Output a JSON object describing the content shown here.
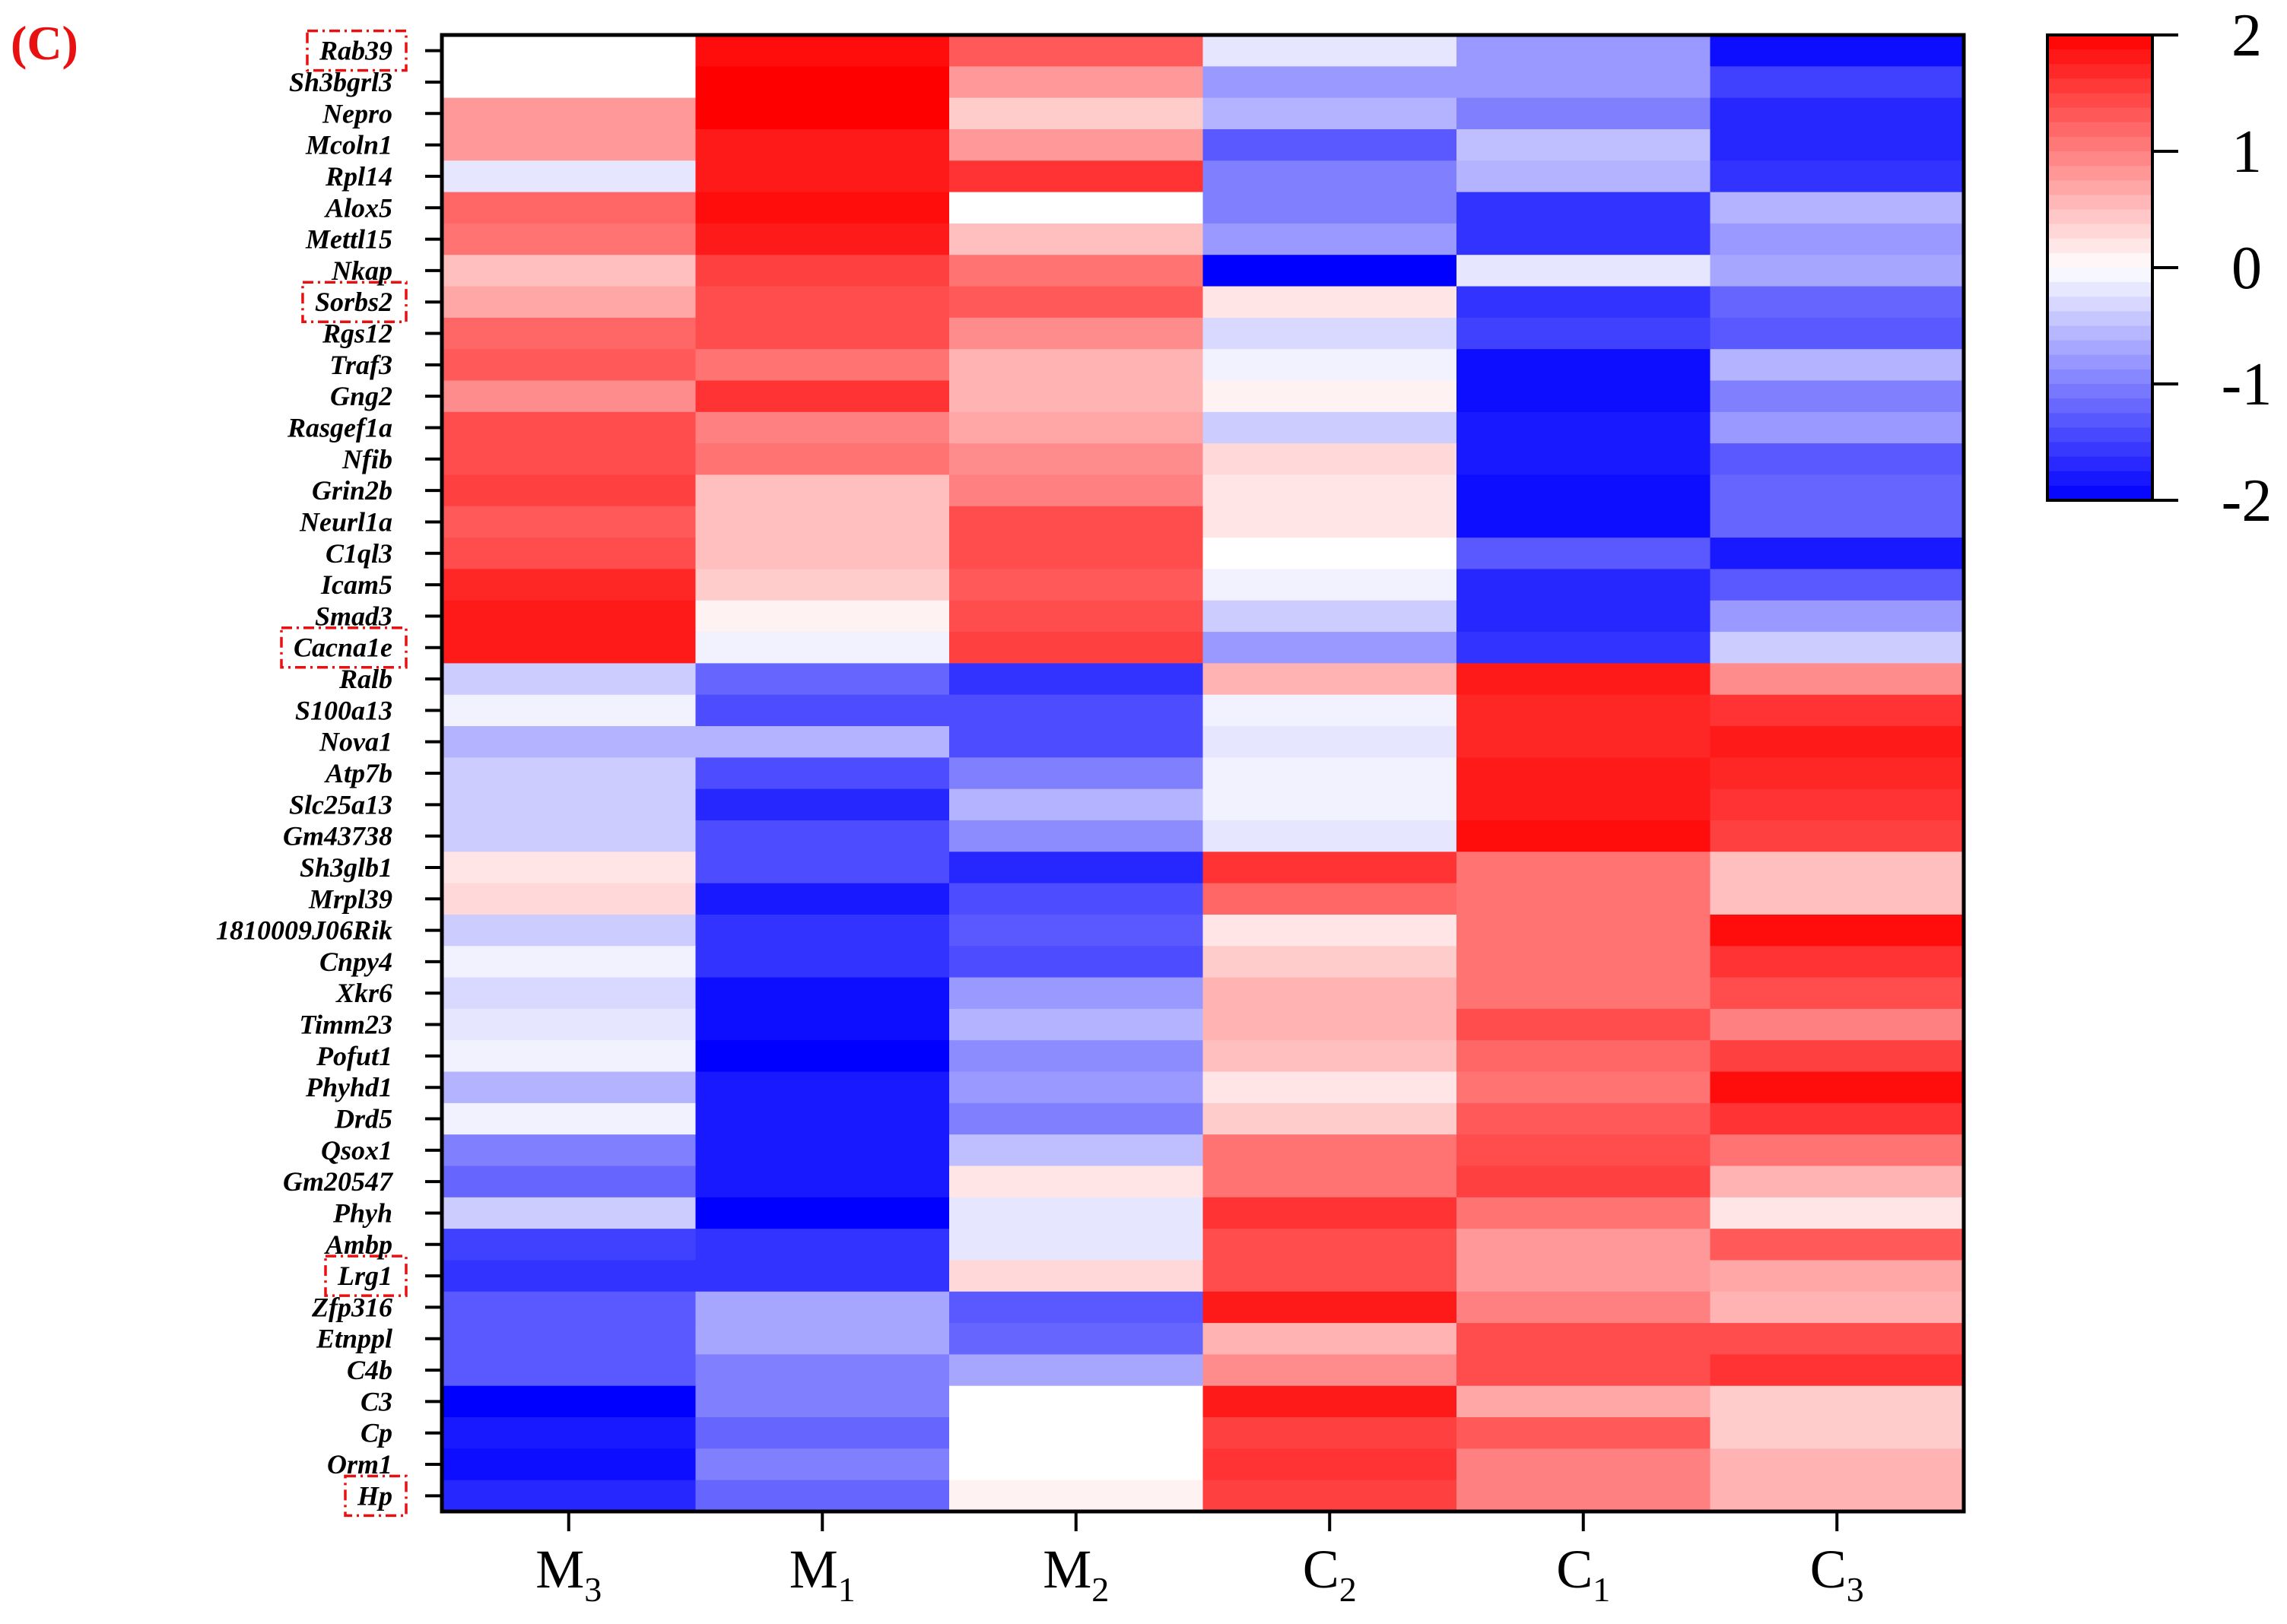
{
  "panel_label": "(C)",
  "chart_data": {
    "type": "heatmap",
    "title": "",
    "columns": [
      {
        "base": "M",
        "sub": "3"
      },
      {
        "base": "M",
        "sub": "1"
      },
      {
        "base": "M",
        "sub": "2"
      },
      {
        "base": "C",
        "sub": "2"
      },
      {
        "base": "C",
        "sub": "1"
      },
      {
        "base": "C",
        "sub": "3"
      }
    ],
    "rows": [
      "Rab39",
      "Sh3bgrl3",
      "Nepro",
      "Mcoln1",
      "Rpl14",
      "Alox5",
      "Mettl15",
      "Nkap",
      "Sorbs2",
      "Rgs12",
      "Traf3",
      "Gng2",
      "Rasgef1a",
      "Nfib",
      "Grin2b",
      "Neurl1a",
      "C1ql3",
      "Icam5",
      "Smad3",
      "Cacna1e",
      "Ralb",
      "S100a13",
      "Nova1",
      "Atp7b",
      "Slc25a13",
      "Gm43738",
      "Sh3glb1",
      "Mrpl39",
      "1810009J06Rik",
      "Cnpy4",
      "Xkr6",
      "Timm23",
      "Pofut1",
      "Phyhd1",
      "Drd5",
      "Qsox1",
      "Gm20547",
      "Phyh",
      "Ambp",
      "Lrg1",
      "Zfp316",
      "Etnppl",
      "C4b",
      "C3",
      "Cp",
      "Orm1",
      "Hp"
    ],
    "highlighted_rows": [
      "Rab39",
      "Sorbs2",
      "Cacna1e",
      "Lrg1",
      "Hp"
    ],
    "values": [
      [
        0.0,
        1.9,
        1.3,
        -0.2,
        -0.8,
        -1.9
      ],
      [
        0.0,
        2.0,
        0.8,
        -0.8,
        -0.8,
        -1.5
      ],
      [
        0.8,
        2.0,
        0.4,
        -0.6,
        -1.0,
        -1.7
      ],
      [
        0.8,
        1.8,
        0.8,
        -1.3,
        -0.5,
        -1.7
      ],
      [
        -0.2,
        1.8,
        1.6,
        -1.0,
        -0.6,
        -1.6
      ],
      [
        1.2,
        1.9,
        0.0,
        -1.0,
        -1.6,
        -0.6
      ],
      [
        1.1,
        1.8,
        0.5,
        -0.8,
        -1.6,
        -0.8
      ],
      [
        0.5,
        1.5,
        1.1,
        -2.0,
        -0.2,
        -0.7
      ],
      [
        0.7,
        1.4,
        1.3,
        0.2,
        -1.6,
        -1.2
      ],
      [
        1.2,
        1.4,
        0.9,
        -0.3,
        -1.5,
        -1.3
      ],
      [
        1.3,
        1.1,
        0.6,
        -0.1,
        -1.9,
        -0.6
      ],
      [
        0.9,
        1.6,
        0.6,
        0.1,
        -1.9,
        -1.0
      ],
      [
        1.4,
        1.0,
        0.7,
        -0.4,
        -1.8,
        -0.8
      ],
      [
        1.4,
        1.1,
        0.9,
        0.3,
        -1.8,
        -1.3
      ],
      [
        1.5,
        0.5,
        1.0,
        0.2,
        -1.9,
        -1.2
      ],
      [
        1.3,
        0.5,
        1.4,
        0.2,
        -1.9,
        -1.2
      ],
      [
        1.4,
        0.5,
        1.4,
        0.0,
        -1.3,
        -1.8
      ],
      [
        1.7,
        0.4,
        1.3,
        -0.1,
        -1.7,
        -1.3
      ],
      [
        1.8,
        0.1,
        1.4,
        -0.4,
        -1.7,
        -0.8
      ],
      [
        1.8,
        -0.1,
        1.5,
        -0.8,
        -1.6,
        -0.4
      ],
      [
        -0.4,
        -1.2,
        -1.6,
        0.6,
        1.8,
        0.9
      ],
      [
        -0.1,
        -1.4,
        -1.4,
        -0.1,
        1.7,
        1.6
      ],
      [
        -0.6,
        -0.6,
        -1.4,
        -0.2,
        1.7,
        1.8
      ],
      [
        -0.4,
        -1.4,
        -1.0,
        -0.1,
        1.8,
        1.7
      ],
      [
        -0.4,
        -1.7,
        -0.6,
        -0.1,
        1.8,
        1.6
      ],
      [
        -0.4,
        -1.4,
        -0.9,
        -0.2,
        1.9,
        1.5
      ],
      [
        0.2,
        -1.4,
        -1.7,
        1.6,
        1.1,
        0.5
      ],
      [
        0.3,
        -1.8,
        -1.4,
        1.2,
        1.1,
        0.5
      ],
      [
        -0.4,
        -1.6,
        -1.3,
        0.2,
        1.1,
        1.9
      ],
      [
        -0.1,
        -1.6,
        -1.4,
        0.4,
        1.1,
        1.6
      ],
      [
        -0.3,
        -1.9,
        -0.8,
        0.6,
        1.1,
        1.4
      ],
      [
        -0.2,
        -1.9,
        -0.6,
        0.6,
        1.4,
        1.0
      ],
      [
        -0.1,
        -2.0,
        -0.9,
        0.5,
        1.2,
        1.5
      ],
      [
        -0.6,
        -1.8,
        -0.8,
        0.2,
        1.1,
        1.9
      ],
      [
        -0.1,
        -1.8,
        -1.0,
        0.4,
        1.3,
        1.6
      ],
      [
        -1.0,
        -1.8,
        -0.5,
        1.1,
        1.4,
        1.1
      ],
      [
        -1.2,
        -1.8,
        0.2,
        1.1,
        1.5,
        0.6
      ],
      [
        -0.4,
        -2.0,
        -0.2,
        1.6,
        1.1,
        0.2
      ],
      [
        -1.5,
        -1.6,
        -0.2,
        1.4,
        0.8,
        1.3
      ],
      [
        -1.6,
        -1.6,
        0.3,
        1.4,
        0.8,
        0.7
      ],
      [
        -1.3,
        -0.7,
        -1.3,
        1.8,
        1.0,
        0.6
      ],
      [
        -1.3,
        -0.7,
        -1.2,
        0.6,
        1.4,
        1.4
      ],
      [
        -1.3,
        -1.0,
        -0.7,
        0.9,
        1.4,
        1.6
      ],
      [
        -2.0,
        -1.0,
        0.0,
        1.8,
        0.7,
        0.4
      ],
      [
        -1.8,
        -1.2,
        0.0,
        1.5,
        1.3,
        0.4
      ],
      [
        -1.9,
        -1.0,
        0.0,
        1.6,
        1.0,
        0.6
      ],
      [
        -1.7,
        -1.2,
        0.1,
        1.5,
        1.0,
        0.6
      ]
    ],
    "color_scale": {
      "min": -2,
      "max": 2,
      "low_color": "#0000ff",
      "mid_color": "#ffffff",
      "high_color": "#ff0000",
      "ticks": [
        "2",
        "1",
        "0",
        "-1",
        "-2"
      ],
      "tick_values": [
        2,
        1,
        0,
        -1,
        -2
      ]
    },
    "highlight_color": "#e81010"
  }
}
